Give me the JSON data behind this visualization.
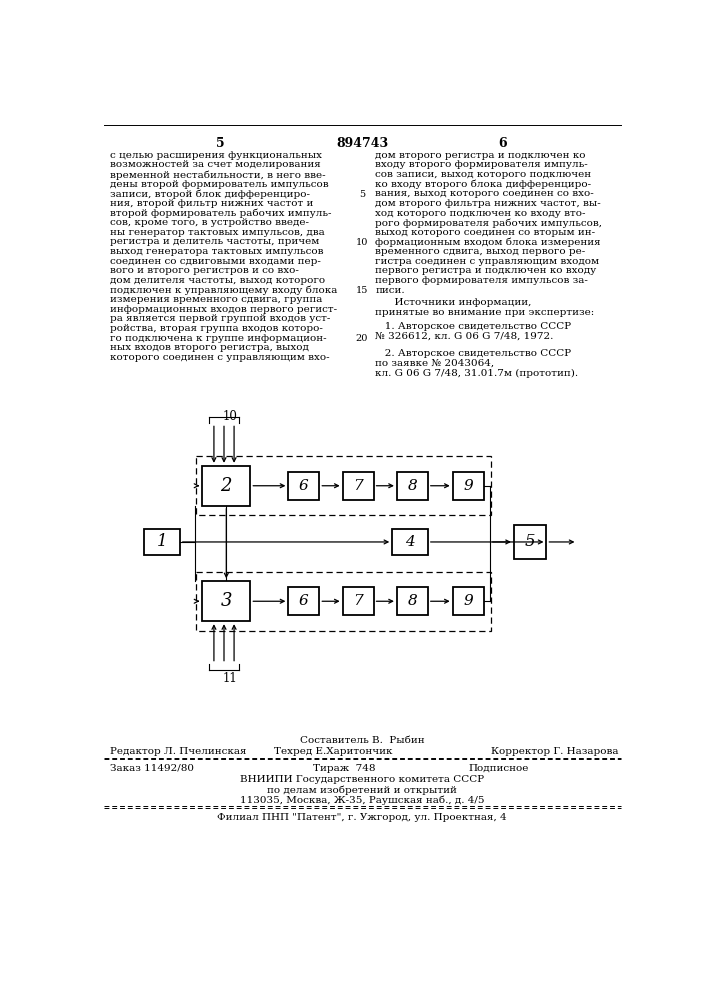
{
  "page_number_left": "5",
  "patent_number": "894743",
  "page_number_right": "6",
  "text_left": "с целью расширения функциональных\nвозможностей за счет моделирования\nвременной нестабильности, в него вве-\nдены второй формирователь импульсов\nзаписи, второй блок дифференциро-\nния, второй фильтр нижних частот и\nвторой формирователь рабочих импуль-\nсов, кроме того, в устройство введе-\nны генератор тактовых импульсов, два\nрегистра и делитель частоты, причем\nвыход генератора тактовых импульсов\nсоединен со сдвиговыми входами пер-\nвого и второго регистров и со вхо-\nдом делителя частоты, выход которого\nподключен к управляющему входу блока\nизмерения временного сдвига, группа\nинформационных входов первого регист-\nра является первой группой входов уст-\nройства, вторая группа входов которо-\nго подключена к группе информацион-\nных входов второго регистра, выход\nкоторого соединен с управляющим вхо-",
  "text_right": "дом второго регистра и подключен ко\nвходу второго формирователя импуль-\nсов записи, выход которого подключен\nко входу второго блока дифференциро-\nвания, выход которого соединен со вхо-\nдом второго фильтра нижних частот, вы-\nход которого подключен ко входу вто-\nрого формирователя рабочих импульсов,\nвыход которого соединен со вторым ин-\nформационным входом блока измерения\nвременного сдвига, выход первого ре-\nгистра соединен с управляющим входом\nпервого регистра и подключен ко входу\nпервого формирователя импульсов за-\nписи.",
  "sources_title": "      Источники информации,",
  "sources_subtitle": "принятые во внимание при экспертизе:",
  "source1_line1": "   1. Авторское свидетельство СССР",
  "source1_line2": "№ 326612, кл. G 06 G 7/48, 1972.",
  "source2_line1": "   2. Авторское свидетельство СССР",
  "source2_line2": "по заявке № 2043064,",
  "source2_line3": "кл. G 06 G 7/48, 31.01.7м (прототип).",
  "line_num_5_row": 4,
  "line_num_10_row": 9,
  "line_num_15_row": 14,
  "line_num_20_row": 19,
  "footer_sestavitel": "Составитель В.  Рыбин",
  "footer_redaktor": "Редактор Л. Пчелинская",
  "footer_tehred": "Техред Е.Харитончик",
  "footer_korrektor": "Корректор Г. Назарова",
  "footer_zakaz": "Заказ 11492/80",
  "footer_tirazh": "Тираж  748",
  "footer_podpisnoe": "Подписное",
  "footer_vniip1": "ВНИИПИ Государственного комитета СССР",
  "footer_vniip2": "по делам изобретений и открытий",
  "footer_vniip3": "113035, Москва, Ж-35, Раушская наб., д. 4/5",
  "footer_filial": "Филиал ПНП \"Патент\", г. Ужгород, ул. Проектная, 4",
  "bg_color": "#ffffff"
}
